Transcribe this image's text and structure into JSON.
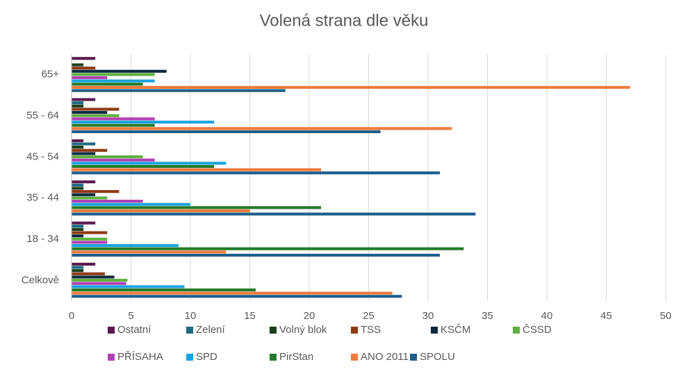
{
  "chart_data": {
    "type": "hbar",
    "title": "Volená strana dle věku",
    "categories": [
      "Celkově",
      "18 - 34",
      "35 - 44",
      "45 - 54",
      "55 - 64",
      "65+"
    ],
    "series": [
      {
        "name": "Ostatní",
        "color": "#5b1a4e",
        "values": [
          2,
          2,
          2,
          1,
          2,
          2
        ]
      },
      {
        "name": "Zelení",
        "color": "#1e6b82",
        "values": [
          1,
          1,
          1,
          2,
          1,
          0
        ]
      },
      {
        "name": "Volný blok",
        "color": "#1b3d1b",
        "values": [
          1,
          1,
          1,
          1,
          1,
          1
        ]
      },
      {
        "name": "TSS",
        "color": "#8e3a12",
        "values": [
          2.8,
          3,
          4,
          3,
          4,
          2
        ]
      },
      {
        "name": "KSČM",
        "color": "#0e2a40",
        "values": [
          3.6,
          1,
          2,
          2,
          3,
          8
        ]
      },
      {
        "name": "ČSSD",
        "color": "#5fb040",
        "values": [
          4.7,
          3,
          3,
          6,
          4,
          7
        ]
      },
      {
        "name": "PŘÍSAHA",
        "color": "#b23fb4",
        "values": [
          4.6,
          3,
          6,
          7,
          7,
          3
        ]
      },
      {
        "name": "SPD",
        "color": "#1aa3de",
        "values": [
          9.5,
          9,
          10,
          13,
          12,
          7
        ]
      },
      {
        "name": "PirStan",
        "color": "#237a2a",
        "values": [
          15.5,
          33,
          21,
          12,
          7,
          6
        ]
      },
      {
        "name": "ANO 2011",
        "color": "#ec7b3c",
        "values": [
          27,
          13,
          15,
          21,
          32,
          47
        ]
      },
      {
        "name": "SPOLU",
        "color": "#1d5f8a",
        "values": [
          27.8,
          31,
          34,
          31,
          26,
          18
        ]
      }
    ],
    "xlim": [
      0,
      50
    ],
    "xticks": [
      0,
      5,
      10,
      15,
      20,
      25,
      30,
      35,
      40,
      45,
      50
    ],
    "grid": true,
    "legend": "bottom"
  }
}
